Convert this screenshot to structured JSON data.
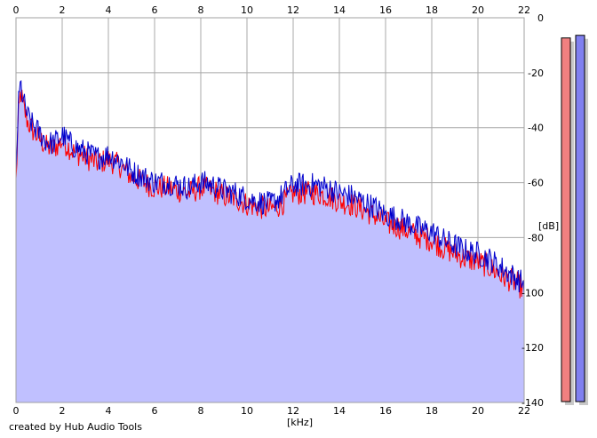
{
  "credit": "created by Hub Audio Tools",
  "chart_data": {
    "type": "area",
    "xlabel": "[kHz]",
    "ylabel": "[dB]",
    "xlim": [
      0,
      22
    ],
    "ylim": [
      -140,
      0
    ],
    "xticks": [
      0,
      2,
      4,
      6,
      8,
      10,
      12,
      14,
      16,
      18,
      20,
      22
    ],
    "yticks": [
      0,
      -20,
      -40,
      -60,
      -80,
      -100,
      -120,
      -140
    ],
    "grid": true,
    "area_fill": "#c0c0ff",
    "x": [
      0.0,
      0.1,
      0.2,
      0.3,
      0.5,
      0.7,
      1.0,
      1.3,
      1.6,
      2.0,
      2.5,
      3.0,
      3.5,
      4.0,
      4.5,
      5.0,
      5.5,
      6.0,
      6.5,
      7.0,
      7.5,
      8.0,
      8.5,
      9.0,
      9.5,
      10.0,
      10.5,
      11.0,
      11.5,
      12.0,
      12.5,
      13.0,
      13.5,
      14.0,
      14.5,
      15.0,
      15.5,
      16.0,
      16.5,
      17.0,
      17.5,
      18.0,
      18.5,
      19.0,
      19.5,
      20.0,
      20.5,
      21.0,
      21.5,
      22.0
    ],
    "series": [
      {
        "values": [
          -58,
          -35,
          -25,
          -30,
          -36,
          -39,
          -42,
          -45,
          -46,
          -43,
          -47,
          -49,
          -51,
          -50,
          -52,
          -56,
          -58,
          -60,
          -60,
          -61,
          -62,
          -60,
          -61,
          -63,
          -64,
          -66,
          -67,
          -68,
          -66,
          -62,
          -62,
          -62,
          -63,
          -65,
          -66,
          -68,
          -70,
          -73,
          -74,
          -76,
          -78,
          -79,
          -82,
          -84,
          -86,
          -87,
          -89,
          -92,
          -94,
          -97
        ],
        "color": "#ff0000"
      },
      {
        "values": [
          -55,
          -30,
          -22,
          -28,
          -34,
          -37,
          -40,
          -43,
          -44,
          -41,
          -45,
          -47,
          -49,
          -48,
          -50,
          -54,
          -56,
          -58,
          -58,
          -59,
          -60,
          -58,
          -59,
          -61,
          -62,
          -64,
          -65,
          -66,
          -63,
          -59,
          -59,
          -59,
          -60,
          -62,
          -63,
          -65,
          -67,
          -70,
          -71,
          -73,
          -75,
          -76,
          -79,
          -81,
          -83,
          -84,
          -86,
          -89,
          -92,
          -95
        ],
        "color": "#0000cc"
      }
    ]
  },
  "meters": {
    "left_level": 0.963,
    "right_level": 0.97,
    "left_color": "#f08080",
    "right_color": "#8080f0"
  }
}
